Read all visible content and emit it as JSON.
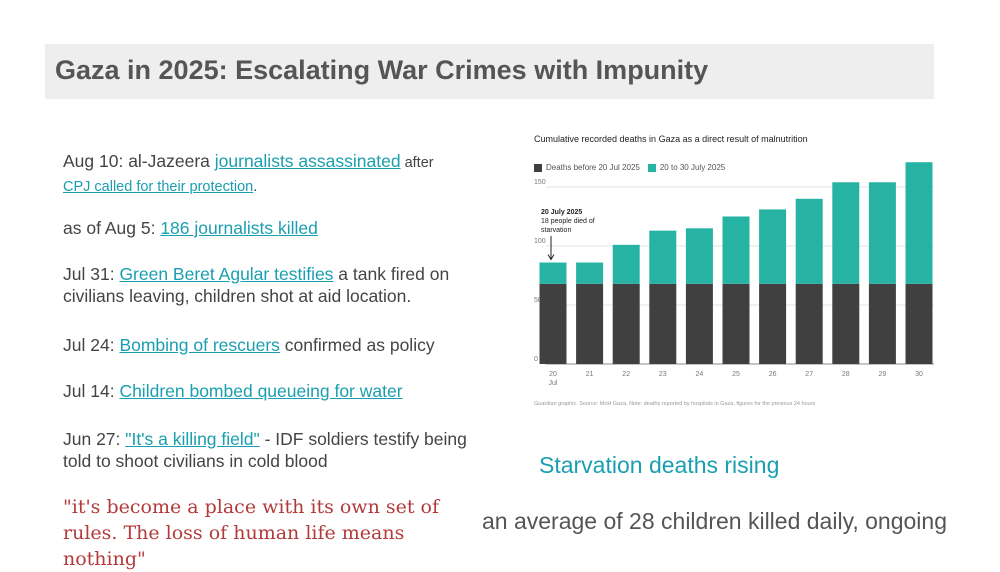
{
  "slide": {
    "title": "Gaza in 2025: Escalating War Crimes with Impunity",
    "items": [
      {
        "date": "Aug 10:",
        "pre": " al-Jazeera ",
        "link1": "journalists assassinated",
        "mid": " after",
        "link2": "CPJ called for their protection",
        "post": "."
      },
      {
        "date": "as of Aug 5:",
        "link": "186 journalists killed",
        "post": ""
      },
      {
        "date": "Jul 31:",
        "link": "Green Beret Agular testifies",
        "post": " a tank fired on civilians leaving, children shot at aid location."
      },
      {
        "date": "Jul 24:",
        "link": "Bombing of rescuers",
        "post": " confirmed as policy"
      },
      {
        "date": "Jul 14:",
        "link": "Children bombed queueing for water",
        "post": ""
      },
      {
        "date": "Jun 27:",
        "link": "\"It's a killing field\"",
        "post": " - IDF soldiers testify being told to shoot civilians in cold blood"
      }
    ],
    "quote": "\"it's become a place with its own set of rules. The loss of human life means nothing\"",
    "caption": "Starvation deaths rising",
    "bottom_text": "an average of 28 children killed daily, ongoing"
  },
  "chart_data": {
    "type": "bar",
    "title": "Cumulative recorded deaths in Gaza as a direct result of malnutrition",
    "legend": [
      "Deaths before 20 Jul 2025",
      "20 to 30 July 2025"
    ],
    "categories": [
      "20",
      "21",
      "22",
      "23",
      "24",
      "25",
      "26",
      "27",
      "28",
      "29",
      "30"
    ],
    "category_sublabel": "Jul",
    "series": [
      {
        "name": "Deaths before 20 Jul 2025",
        "color": "#404040",
        "values": [
          68,
          68,
          68,
          68,
          68,
          68,
          68,
          68,
          68,
          68,
          68
        ]
      },
      {
        "name": "20 to 30 July 2025",
        "color": "#26b3a3",
        "values": [
          18,
          18,
          33,
          45,
          47,
          57,
          63,
          72,
          86,
          86,
          103
        ]
      }
    ],
    "ylim": [
      0,
      150
    ],
    "yticks": [
      0,
      50,
      100,
      150
    ],
    "annotation": {
      "title": "20 July 2025",
      "text": "18 people died of starvation"
    },
    "source": "Guardian graphic. Source: MoH Gaza. Note: deaths reported by hospitals in Gaza, figures for the previous 24 hours"
  }
}
